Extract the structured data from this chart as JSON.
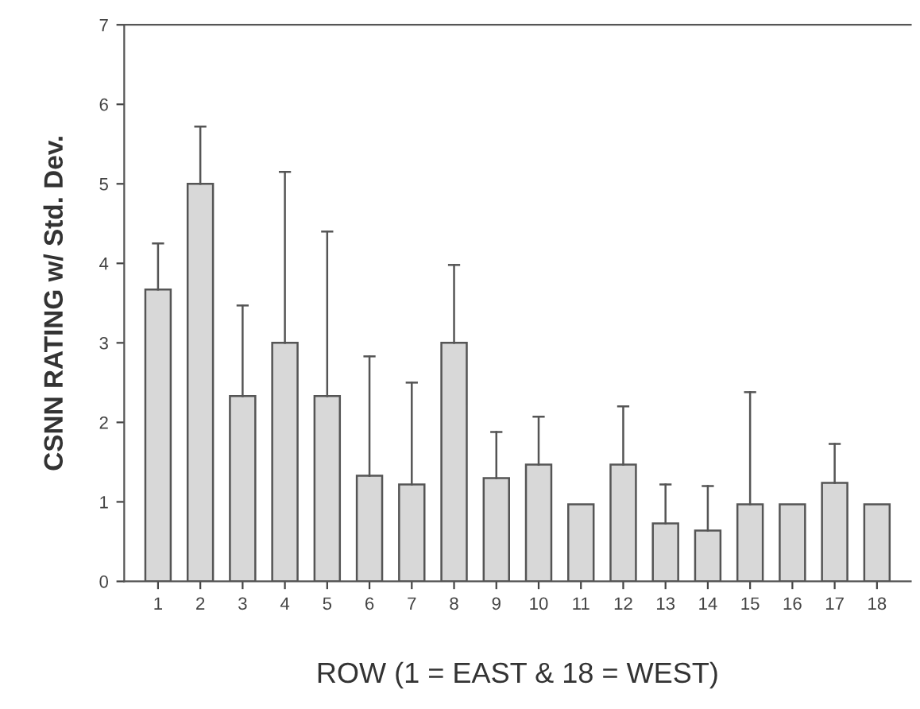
{
  "chart_data": {
    "type": "bar",
    "xlabel": "ROW (1 = EAST & 18 = WEST)",
    "ylabel": "CSNN RATING w/ Std. Dev.",
    "categories": [
      "1",
      "2",
      "3",
      "4",
      "5",
      "6",
      "7",
      "8",
      "9",
      "10",
      "11",
      "12",
      "13",
      "14",
      "15",
      "16",
      "17",
      "18"
    ],
    "values": [
      3.67,
      5.0,
      2.33,
      3.0,
      2.33,
      1.33,
      1.22,
      3.0,
      1.3,
      1.47,
      0.97,
      1.47,
      0.73,
      0.64,
      0.97,
      0.97,
      1.24,
      0.97
    ],
    "errors": [
      [
        3.67,
        4.25
      ],
      [
        5.0,
        5.72
      ],
      [
        2.33,
        3.47
      ],
      [
        3.0,
        5.15
      ],
      [
        2.33,
        4.4
      ],
      [
        1.33,
        2.83
      ],
      [
        1.22,
        2.5
      ],
      [
        3.0,
        3.98
      ],
      [
        1.3,
        1.88
      ],
      [
        1.47,
        2.07
      ],
      null,
      [
        1.47,
        2.2
      ],
      [
        0.73,
        1.22
      ],
      [
        0.64,
        1.2
      ],
      [
        0.97,
        2.38
      ],
      null,
      [
        1.24,
        1.73
      ],
      null
    ],
    "color": "#d8d8d8",
    "ylim": [
      0,
      7
    ],
    "yticks": [
      0,
      1,
      2,
      3,
      4,
      5,
      6,
      7
    ],
    "grid": false
  }
}
